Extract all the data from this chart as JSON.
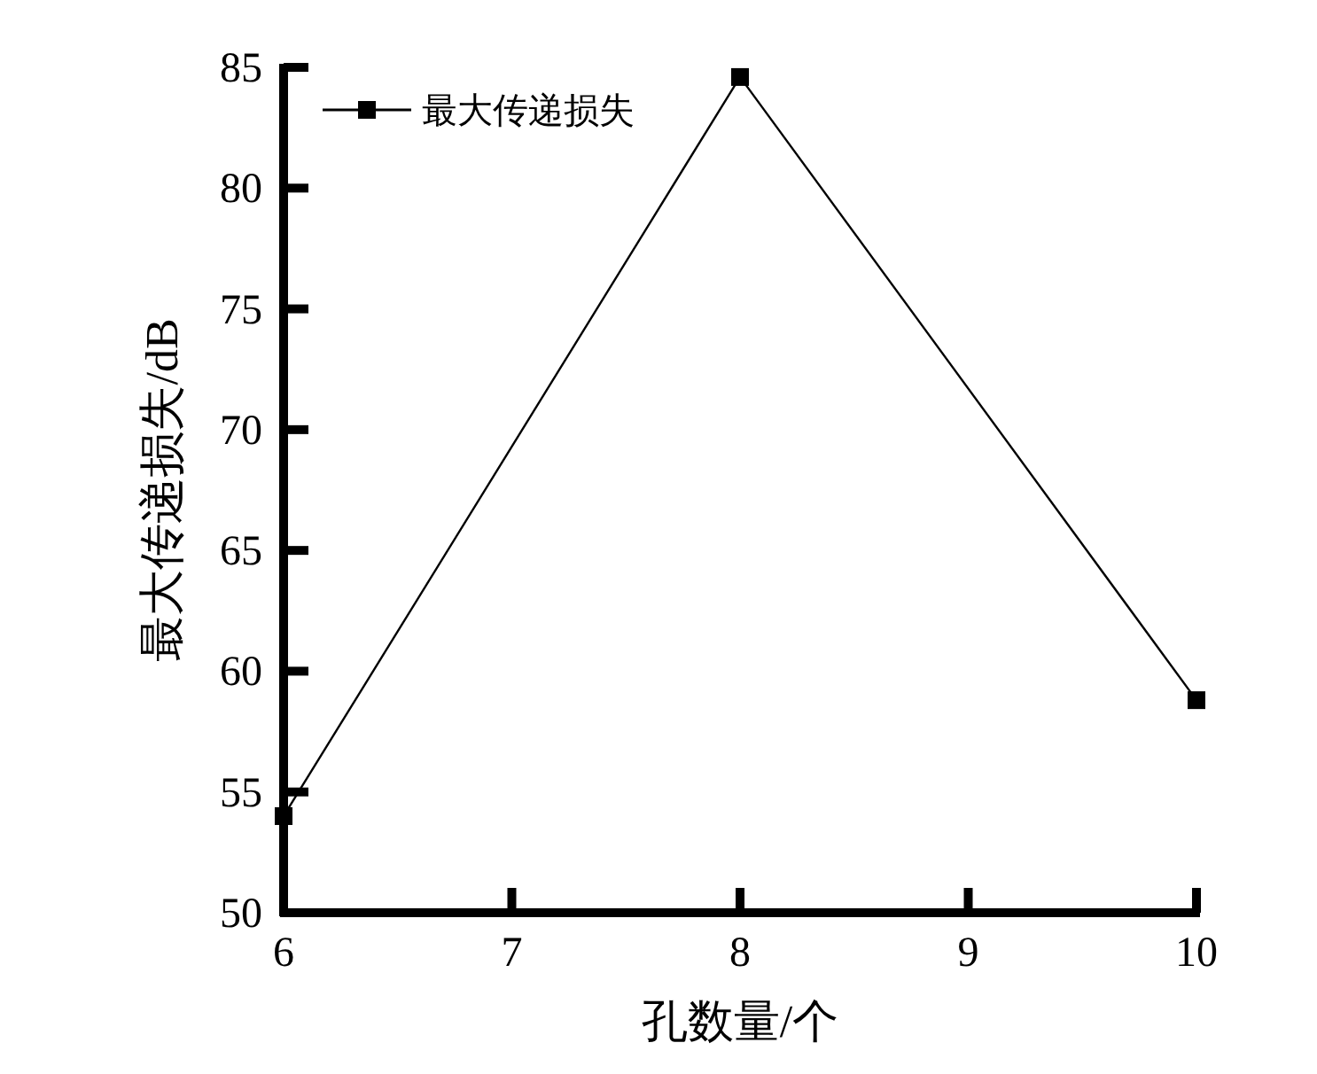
{
  "chart_data": {
    "type": "line",
    "xlabel": "孔数量/个",
    "ylabel": "最大传递损失/dB",
    "x": [
      6,
      8,
      10
    ],
    "series": [
      {
        "name": "最大传递损失",
        "color": "#000000",
        "values": [
          54.0,
          84.6,
          58.8
        ]
      }
    ],
    "xlim": [
      6,
      10
    ],
    "xticks": [
      6,
      7,
      8,
      9,
      10
    ],
    "ylim": [
      50,
      85
    ],
    "yticks": [
      50,
      55,
      60,
      65,
      70,
      75,
      80,
      85
    ],
    "marker": "square",
    "line_style": "solid",
    "legend": "top left",
    "grid": false
  }
}
